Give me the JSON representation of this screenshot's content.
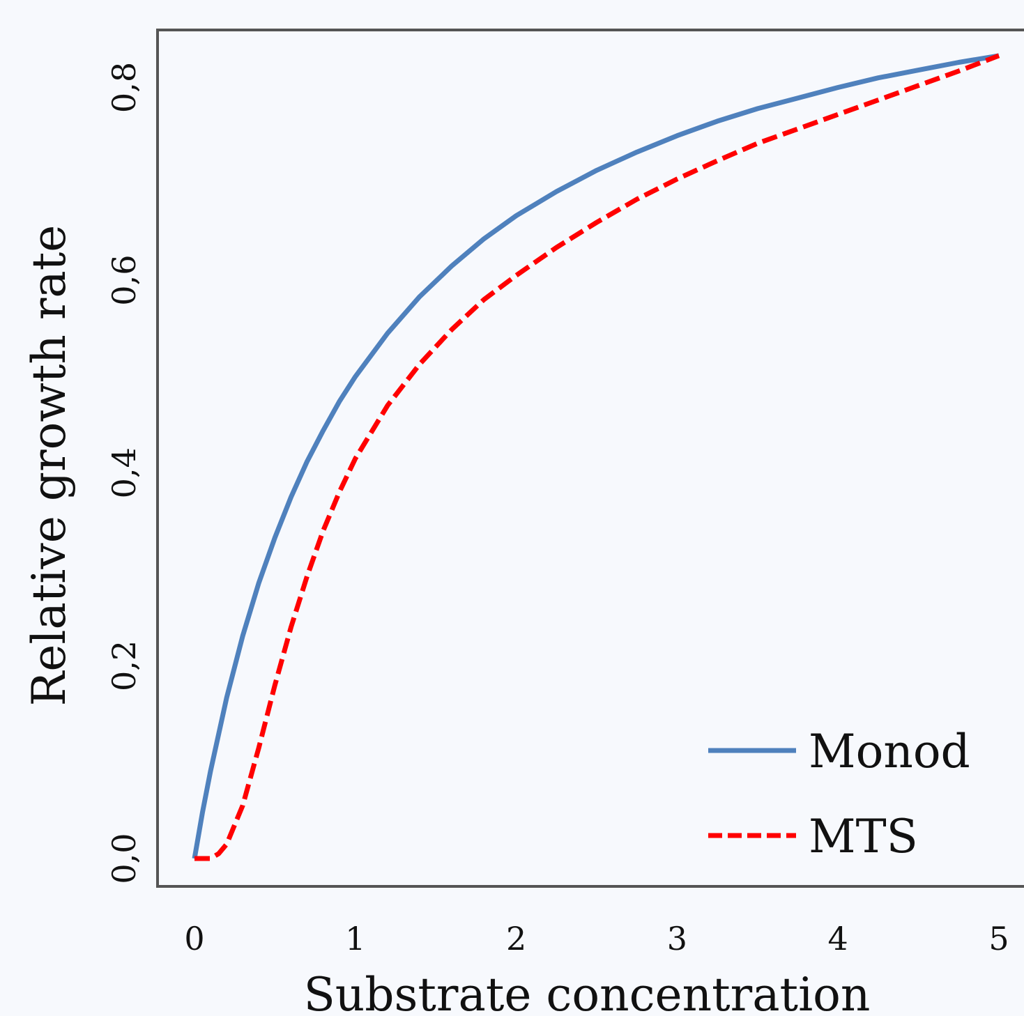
{
  "chart_data": {
    "type": "line",
    "xlabel": "Substrate concentration",
    "ylabel": "Relative growth rate",
    "xlim": [
      0,
      5
    ],
    "ylim": [
      0,
      0.83
    ],
    "x_ticks": [
      "0",
      "1",
      "2",
      "3",
      "4",
      "5"
    ],
    "y_ticks": [
      "0,0",
      "0,2",
      "0,4",
      "0,6",
      "0,8"
    ],
    "legend_position": "bottom-right",
    "series": [
      {
        "name": "Monod",
        "color": "#4f81bd",
        "dash": "solid",
        "x": [
          0,
          0.05,
          0.1,
          0.2,
          0.3,
          0.4,
          0.5,
          0.6,
          0.7,
          0.8,
          0.9,
          1.0,
          1.2,
          1.4,
          1.6,
          1.8,
          2.0,
          2.25,
          2.5,
          2.75,
          3.0,
          3.25,
          3.5,
          3.75,
          4.0,
          4.25,
          4.5,
          4.75,
          5.0
        ],
        "y": [
          0,
          0.048,
          0.091,
          0.167,
          0.231,
          0.286,
          0.333,
          0.375,
          0.412,
          0.444,
          0.474,
          0.5,
          0.545,
          0.583,
          0.615,
          0.643,
          0.667,
          0.692,
          0.714,
          0.733,
          0.75,
          0.765,
          0.778,
          0.789,
          0.8,
          0.81,
          0.818,
          0.826,
          0.833
        ]
      },
      {
        "name": "MTS",
        "color": "#ff0000",
        "dash": "dashed",
        "x": [
          0,
          0.1,
          0.15,
          0.2,
          0.3,
          0.4,
          0.5,
          0.6,
          0.7,
          0.8,
          0.9,
          1.0,
          1.2,
          1.4,
          1.6,
          1.8,
          2.0,
          2.25,
          2.5,
          2.75,
          3.0,
          3.25,
          3.5,
          3.75,
          4.0,
          4.25,
          4.5,
          4.75,
          5.0
        ],
        "y": [
          0,
          0.0,
          0.005,
          0.015,
          0.055,
          0.115,
          0.18,
          0.24,
          0.293,
          0.34,
          0.38,
          0.415,
          0.47,
          0.513,
          0.549,
          0.58,
          0.605,
          0.634,
          0.66,
          0.684,
          0.705,
          0.724,
          0.742,
          0.757,
          0.772,
          0.787,
          0.802,
          0.817,
          0.833
        ]
      }
    ]
  }
}
